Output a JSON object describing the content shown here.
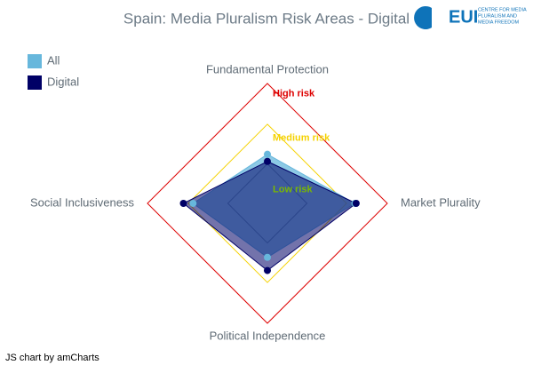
{
  "chart_data": {
    "type": "radar",
    "title": "Spain: Media Pluralism Risk Areas - Digital",
    "logo": {
      "text": "EUI",
      "lines": [
        "CENTRE FOR MEDIA",
        "PLURALISM AND",
        "MEDIA FREEDOM"
      ]
    },
    "credit": "JS chart by amCharts",
    "categories": [
      "Fundamental Protection",
      "Market Plurality",
      "Political Independence",
      "Social Inclusiveness"
    ],
    "series": [
      {
        "name": "All",
        "color": "#67b7dc",
        "values": [
          41,
          73,
          45,
          62
        ]
      },
      {
        "name": "Digital",
        "color": "#000066",
        "values": [
          35,
          74,
          56,
          70
        ]
      }
    ],
    "bands": [
      {
        "name": "Low risk",
        "from": 0,
        "to": 33,
        "color": "#7ab800",
        "line_color": "#444444"
      },
      {
        "name": "Medium risk",
        "from": 33,
        "to": 66,
        "color": "#f5d200",
        "line_color": "#f5d200"
      },
      {
        "name": "High risk",
        "from": 66,
        "to": 100,
        "color": "#dd0000",
        "line_color": "#dd0000"
      }
    ],
    "ylim": [
      0,
      100
    ],
    "legend": "top-left"
  }
}
